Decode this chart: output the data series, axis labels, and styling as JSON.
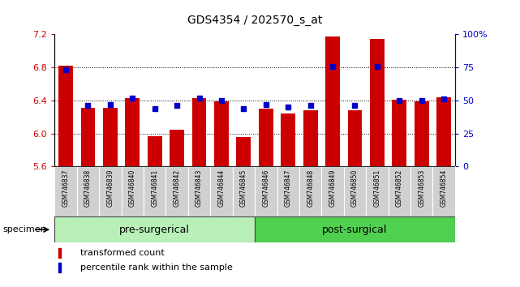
{
  "title": "GDS4354 / 202570_s_at",
  "samples": [
    "GSM746837",
    "GSM746838",
    "GSM746839",
    "GSM746840",
    "GSM746841",
    "GSM746842",
    "GSM746843",
    "GSM746844",
    "GSM746845",
    "GSM746846",
    "GSM746847",
    "GSM746848",
    "GSM746849",
    "GSM746850",
    "GSM746851",
    "GSM746852",
    "GSM746853",
    "GSM746854"
  ],
  "bar_values": [
    6.82,
    6.31,
    6.31,
    6.43,
    5.97,
    6.05,
    6.43,
    6.39,
    5.96,
    6.3,
    6.24,
    6.28,
    7.18,
    6.28,
    7.15,
    6.41,
    6.39,
    6.44
  ],
  "percentile_values": [
    73,
    46,
    47,
    52,
    44,
    46,
    52,
    50,
    44,
    47,
    45,
    46,
    76,
    46,
    76,
    50,
    50,
    51
  ],
  "ylim_left": [
    5.6,
    7.2
  ],
  "ylim_right": [
    0,
    100
  ],
  "yticks_left": [
    5.6,
    6.0,
    6.4,
    6.8,
    7.2
  ],
  "yticks_right": [
    0,
    25,
    50,
    75,
    100
  ],
  "ytick_labels_right": [
    "0",
    "25",
    "50",
    "75",
    "100%"
  ],
  "bar_color": "#cc0000",
  "dot_color": "#0000cc",
  "pre_surgical_count": 9,
  "post_surgical_count": 9,
  "group_label_pre": "pre-surgerical",
  "group_label_post": "post-surgical",
  "legend_bar_label": "transformed count",
  "legend_dot_label": "percentile rank within the sample",
  "specimen_label": "specimen",
  "bg_group_pre": "#b8f0b8",
  "bg_group_post": "#50d050",
  "xtick_bg": "#d0d0d0",
  "grid_lines": [
    6.0,
    6.4,
    6.8
  ]
}
